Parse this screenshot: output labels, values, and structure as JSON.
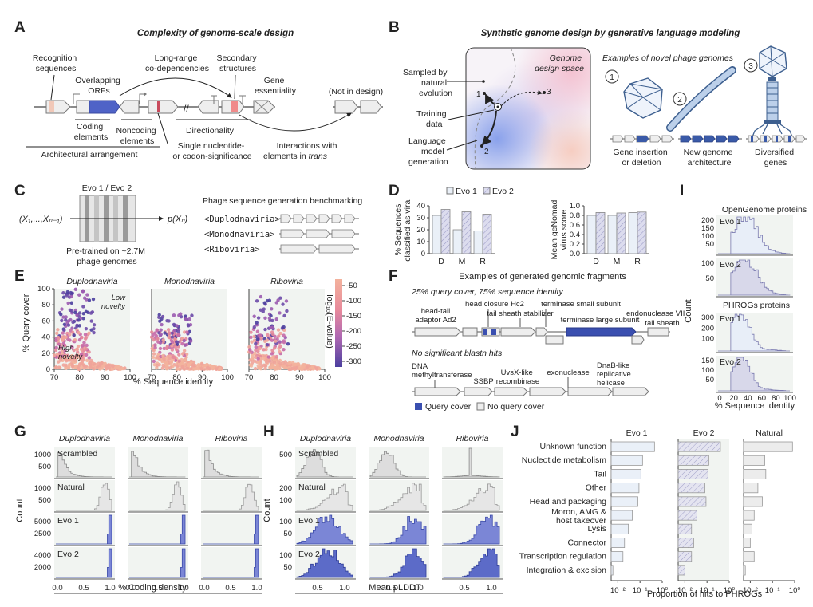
{
  "panelA": {
    "letter": "A",
    "title": "Complexity of genome-scale design",
    "labels": {
      "recognition": [
        "Recognition",
        "sequences"
      ],
      "overlapping": [
        "Overlapping",
        "ORFs"
      ],
      "longrange": [
        "Long-range",
        "co-dependencies"
      ],
      "secondary": [
        "Secondary",
        "structures"
      ],
      "essentiality": [
        "Gene",
        "essentiality"
      ],
      "notindesign": "(Not in design)",
      "coding": [
        "Coding",
        "elements"
      ],
      "noncoding": [
        "Noncoding",
        "elements"
      ],
      "directionality": "Directionality",
      "single": [
        "Single nucleotide-",
        "or codon-significance"
      ],
      "interactions": [
        "Interactions with",
        "elements in "
      ],
      "trans": "trans",
      "architectural": "Architectural arrangement"
    }
  },
  "panelB": {
    "letter": "B",
    "title": "Synthetic genome design by generative language modeling",
    "sampled": [
      "Sampled by",
      "natural",
      "evolution"
    ],
    "training": [
      "Training",
      "data"
    ],
    "lmgen": [
      "Language",
      "model",
      "generation"
    ],
    "space": [
      "Genome",
      "design space"
    ],
    "examples": "Examples of novel phage genomes",
    "points": [
      "1",
      "2",
      "3"
    ],
    "items": [
      {
        "num": "1",
        "label": [
          "Gene insertion",
          "or deletion"
        ]
      },
      {
        "num": "2",
        "label": [
          "New genome",
          "architecture"
        ]
      },
      {
        "num": "3",
        "label": [
          "Diversified",
          "genes"
        ]
      }
    ]
  },
  "panelC": {
    "letter": "C",
    "model": "Evo 1 / Evo 2",
    "input": "(X₁,...,Xₙ₋₁)",
    "output": "p(Xₙ)",
    "pretrained": [
      "Pre-trained on ~2.7M",
      "phage genomes"
    ],
    "benchmark": "Phage sequence generation benchmarking",
    "tags": [
      "<Duplodnaviria>",
      "<Monodnaviria>",
      "<Riboviria>"
    ]
  },
  "panelD": {
    "letter": "D",
    "legend": [
      "Evo 1",
      "Evo 2"
    ],
    "chart_data": [
      {
        "type": "bar",
        "categories": [
          "D",
          "M",
          "R"
        ],
        "ylabel": "% Sequences classified as viral",
        "ylim": [
          0,
          40
        ],
        "yticks": [
          0,
          10,
          20,
          30,
          40
        ],
        "series": [
          {
            "name": "Evo 1",
            "values": [
              32,
              20,
              19
            ]
          },
          {
            "name": "Evo 2",
            "values": [
              37,
              35,
              33
            ]
          }
        ]
      },
      {
        "type": "bar",
        "categories": [
          "D",
          "M",
          "R"
        ],
        "ylabel": "Mean geNomad virus score",
        "ylim": [
          0,
          1.0
        ],
        "yticks": [
          0.0,
          0.2,
          0.4,
          0.6,
          0.8,
          1.0
        ],
        "series": [
          {
            "name": "Evo 1",
            "values": [
              0.8,
              0.8,
              0.86
            ]
          },
          {
            "name": "Evo 2",
            "values": [
              0.86,
              0.85,
              0.87
            ]
          }
        ]
      }
    ]
  },
  "panelE": {
    "letter": "E",
    "titles": [
      "Duplodnaviria",
      "Monodnaviria",
      "Riboviria"
    ],
    "xlabel": "% Sequence identity",
    "ylabel": "% Query cover",
    "xticks": [
      70,
      80,
      90,
      100
    ],
    "yticks": [
      0,
      20,
      40,
      60,
      80,
      100
    ],
    "low": [
      "Low",
      "novelty"
    ],
    "high": [
      "High",
      "novelty"
    ],
    "cbar_label": "log₁₀(E-value)",
    "cbar_ticks": [
      -50,
      -100,
      -150,
      -200,
      -250,
      -300
    ]
  },
  "panelF": {
    "letter": "F",
    "title": "Examples of generated genomic fragments",
    "sub1": "25% query cover, 75% sequence identity",
    "sub2": "No significant blastn hits",
    "genes1": [
      "head closure Hc2",
      "head-tail",
      "adaptor Ad2",
      "tail sheath stabilizer",
      "terminase small subunit",
      "terminase large subunit",
      "endonuclease VII",
      "tail sheath"
    ],
    "genes2": [
      "DNA",
      "methyltransferase",
      "SSBP",
      "UvsX-like",
      "recombinase",
      "exonuclease",
      "DnaB-like",
      "replicative",
      "helicase"
    ],
    "legend": [
      "Query cover",
      "No query cover"
    ]
  },
  "panelG": {
    "letter": "G",
    "titles": [
      "Duplodnaviria",
      "Monodnaviria",
      "Riboviria"
    ],
    "rows": [
      "Scrambled",
      "Natural",
      "Evo 1",
      "Evo 2"
    ],
    "yticks": [
      [
        "1000",
        "500"
      ],
      [
        "1000",
        "500"
      ],
      [
        "5000",
        "2500"
      ],
      [
        "4000",
        "2000"
      ]
    ],
    "xlabel": "% Coding density",
    "xticks": [
      "0.0",
      "0.5",
      "1.0"
    ],
    "ylabel": "Count"
  },
  "panelH": {
    "letter": "H",
    "titles": [
      "Duplodnaviria",
      "Monodnaviria",
      "Riboviria"
    ],
    "rows": [
      "Scrambled",
      "Natural",
      "Evo 1",
      "Evo 2"
    ],
    "yticks": [
      [
        "500"
      ],
      [
        "200",
        "100"
      ],
      [
        "100",
        "50"
      ],
      [
        "100",
        "50"
      ]
    ],
    "xlabel": "Mean pLDDT",
    "xticks": [
      "0.5",
      "1.0"
    ],
    "ylabel": "Count"
  },
  "panelI": {
    "letter": "I",
    "group1": "OpenGenome proteins",
    "group2": "PHROGs proteins",
    "rows": [
      "Evo 1",
      "Evo 2",
      "Evo 1",
      "Evo 2"
    ],
    "yticks": [
      [
        "200",
        "150",
        "100",
        "50"
      ],
      [
        "100",
        "50"
      ],
      [
        "300",
        "200",
        "100"
      ],
      [
        "150",
        "100",
        "50"
      ]
    ],
    "xticks": [
      "0",
      "20",
      "40",
      "60",
      "80",
      "100"
    ],
    "xlabel": "% Sequence identity",
    "ylabel": "Count"
  },
  "panelJ": {
    "letter": "J",
    "xlabel": "Proportion of hits to PHROGs",
    "xticks": [
      "10⁻²",
      "10⁻¹",
      "10⁰"
    ],
    "chart_data": {
      "type": "bar",
      "scale": "log",
      "xlim": [
        0.005,
        1
      ],
      "categories": [
        "Unknown function",
        "Nucleotide metabolism",
        "Tail",
        "Other",
        "Head and packaging",
        "Moron, AMG & host takeover",
        "Lysis",
        "Connector",
        "Transcription regulation",
        "Integration & excision"
      ],
      "series": [
        {
          "name": "Evo 1",
          "values": [
            0.45,
            0.13,
            0.11,
            0.09,
            0.08,
            0.045,
            0.03,
            0.02,
            0.017,
            0.006
          ]
        },
        {
          "name": "Evo 2",
          "values": [
            0.4,
            0.12,
            0.11,
            0.08,
            0.09,
            0.035,
            0.02,
            0.025,
            0.02,
            0.01
          ]
        },
        {
          "name": "Natural",
          "values": [
            0.8,
            0.045,
            0.05,
            0.022,
            0.035,
            0.015,
            0.012,
            0.01,
            0.015,
            0.006
          ]
        }
      ]
    }
  }
}
